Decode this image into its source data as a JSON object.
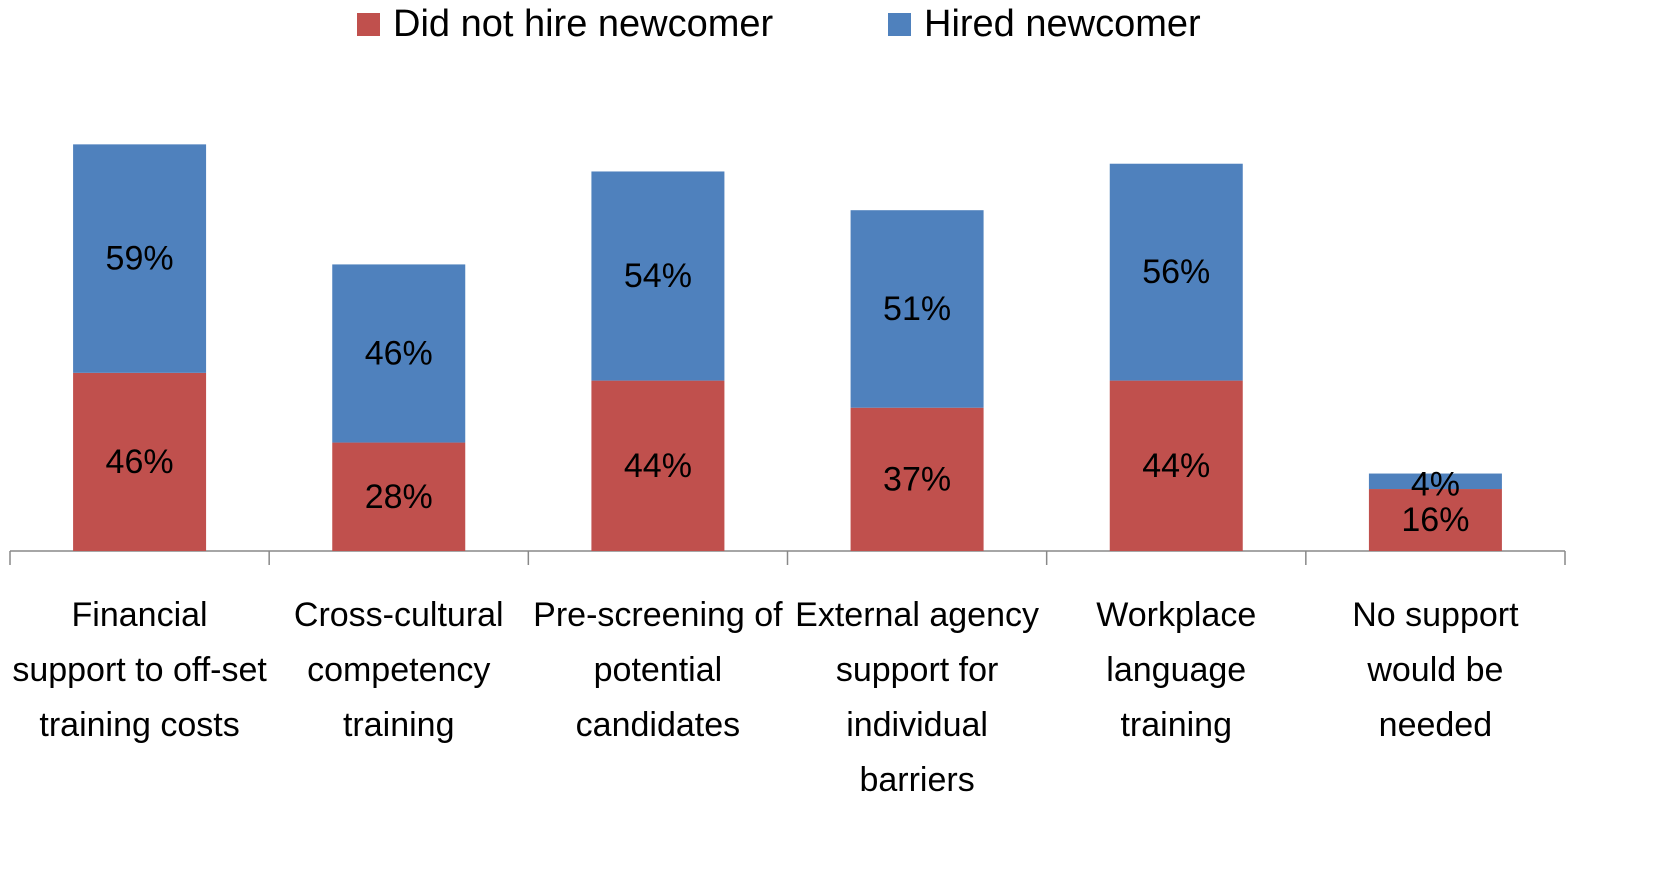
{
  "chart_data": {
    "type": "stacked_bar",
    "categories": [
      "Financial support to off-set training costs",
      "Cross-cultural competency training",
      "Pre-screening of potential candidates",
      "External agency support for individual barriers",
      "Workplace language training",
      "No support would be needed"
    ],
    "series": [
      {
        "name": "Did not hire newcomer",
        "color": "#c0504d",
        "values": [
          46,
          28,
          44,
          37,
          44,
          16
        ],
        "value_labels": [
          "46%",
          "28%",
          "44%",
          "37%",
          "44%",
          "16%"
        ]
      },
      {
        "name": "Hired newcomer",
        "color": "#4f81bd",
        "values": [
          59,
          46,
          54,
          51,
          56,
          4
        ],
        "value_labels": [
          "59%",
          "46%",
          "54%",
          "51%",
          "56%",
          "4%"
        ]
      }
    ],
    "ylim": [
      0,
      110
    ],
    "legend": "top"
  }
}
